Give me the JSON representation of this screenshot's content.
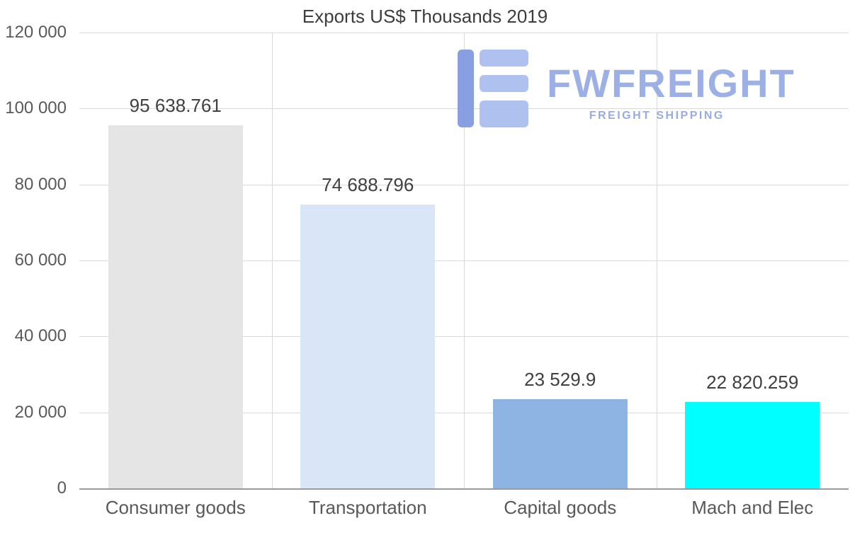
{
  "page": {
    "background": "#ffffff"
  },
  "chart_data": {
    "type": "bar",
    "title": "Exports US$ Thousands 2019",
    "categories": [
      "Consumer goods",
      "Transportation",
      "Capital goods",
      "Mach and Elec"
    ],
    "values": [
      95638.761,
      74688.796,
      23529.9,
      22820.259
    ],
    "value_labels": [
      "95 638.761",
      "74 688.796",
      "23 529.9",
      "22 820.259"
    ],
    "bar_colors": [
      "#e5e5e5",
      "#d8e6f8",
      "#8db4e2",
      "#00ffff"
    ],
    "xlabel": "",
    "ylabel": "",
    "ylim": [
      0,
      120000
    ],
    "yticks": [
      0,
      20000,
      40000,
      60000,
      80000,
      100000,
      120000
    ],
    "ytick_labels": [
      "0",
      "20 000",
      "40 000",
      "60 000",
      "80 000",
      "100 000",
      "120 000"
    ],
    "grid": true,
    "legend": false,
    "gridline_color": "#d9d9d9",
    "axis_line_color": "#9a9a9a",
    "title_color": "#3d3d3d",
    "tick_color": "#595959",
    "value_label_color": "#404040",
    "bar_width_fraction": 0.7
  },
  "watermark": {
    "brand": "FWFREIGHT",
    "tagline": "FREIGHT SHIPPING",
    "brand_color": "#95aae4",
    "tagline_color": "#8fa6e2",
    "icon_stem_color": "#7e99e0",
    "icon_bar_color": "#a9bdee"
  }
}
